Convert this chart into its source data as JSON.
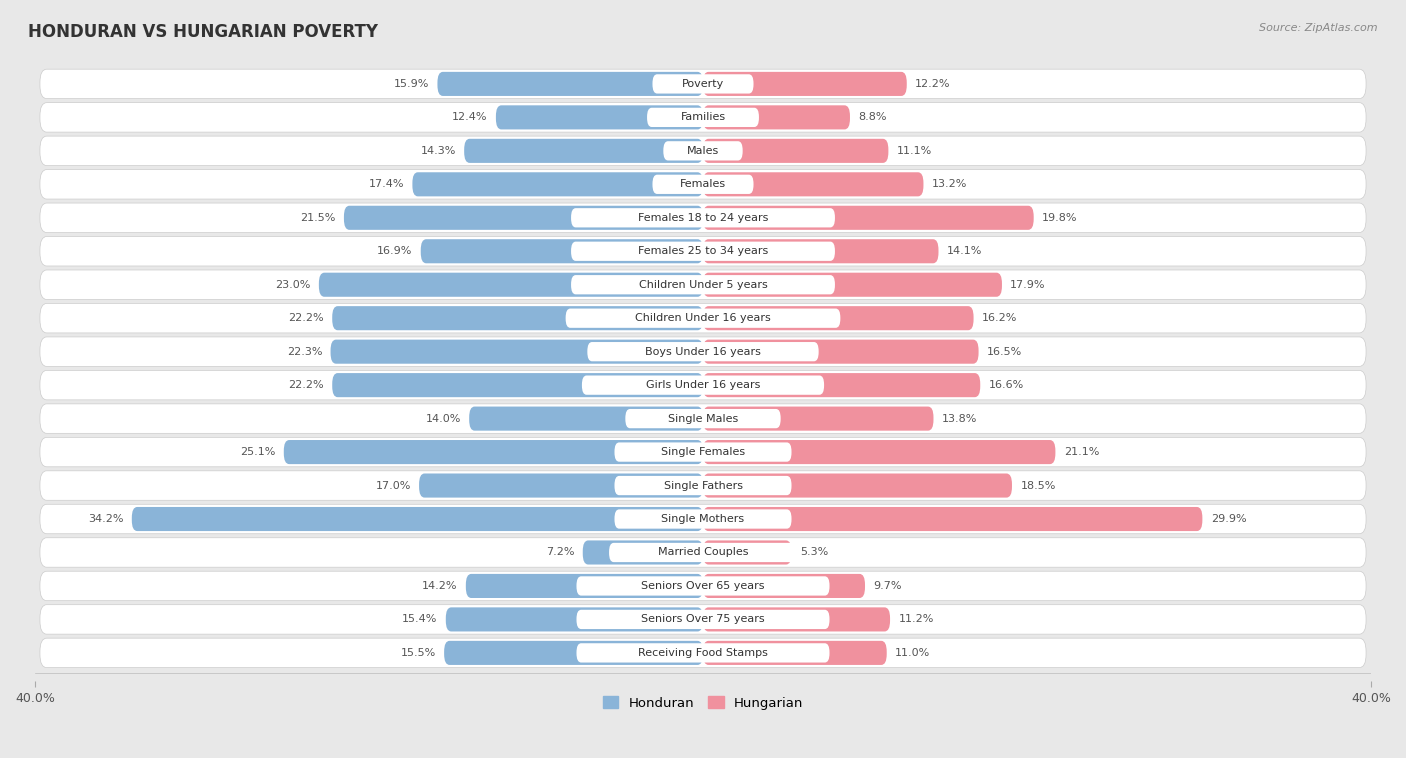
{
  "title": "HONDURAN VS HUNGARIAN POVERTY",
  "source": "Source: ZipAtlas.com",
  "categories": [
    "Poverty",
    "Families",
    "Males",
    "Females",
    "Females 18 to 24 years",
    "Females 25 to 34 years",
    "Children Under 5 years",
    "Children Under 16 years",
    "Boys Under 16 years",
    "Girls Under 16 years",
    "Single Males",
    "Single Females",
    "Single Fathers",
    "Single Mothers",
    "Married Couples",
    "Seniors Over 65 years",
    "Seniors Over 75 years",
    "Receiving Food Stamps"
  ],
  "honduran": [
    15.9,
    12.4,
    14.3,
    17.4,
    21.5,
    16.9,
    23.0,
    22.2,
    22.3,
    22.2,
    14.0,
    25.1,
    17.0,
    34.2,
    7.2,
    14.2,
    15.4,
    15.5
  ],
  "hungarian": [
    12.2,
    8.8,
    11.1,
    13.2,
    19.8,
    14.1,
    17.9,
    16.2,
    16.5,
    16.6,
    13.8,
    21.1,
    18.5,
    29.9,
    5.3,
    9.7,
    11.2,
    11.0
  ],
  "honduran_color": "#8ab4d8",
  "hungarian_color": "#f0919e",
  "background_color": "#e8e8e8",
  "row_bg_color": "#ffffff",
  "x_max": 40.0,
  "legend_honduran": "Honduran",
  "legend_hungarian": "Hungarian"
}
